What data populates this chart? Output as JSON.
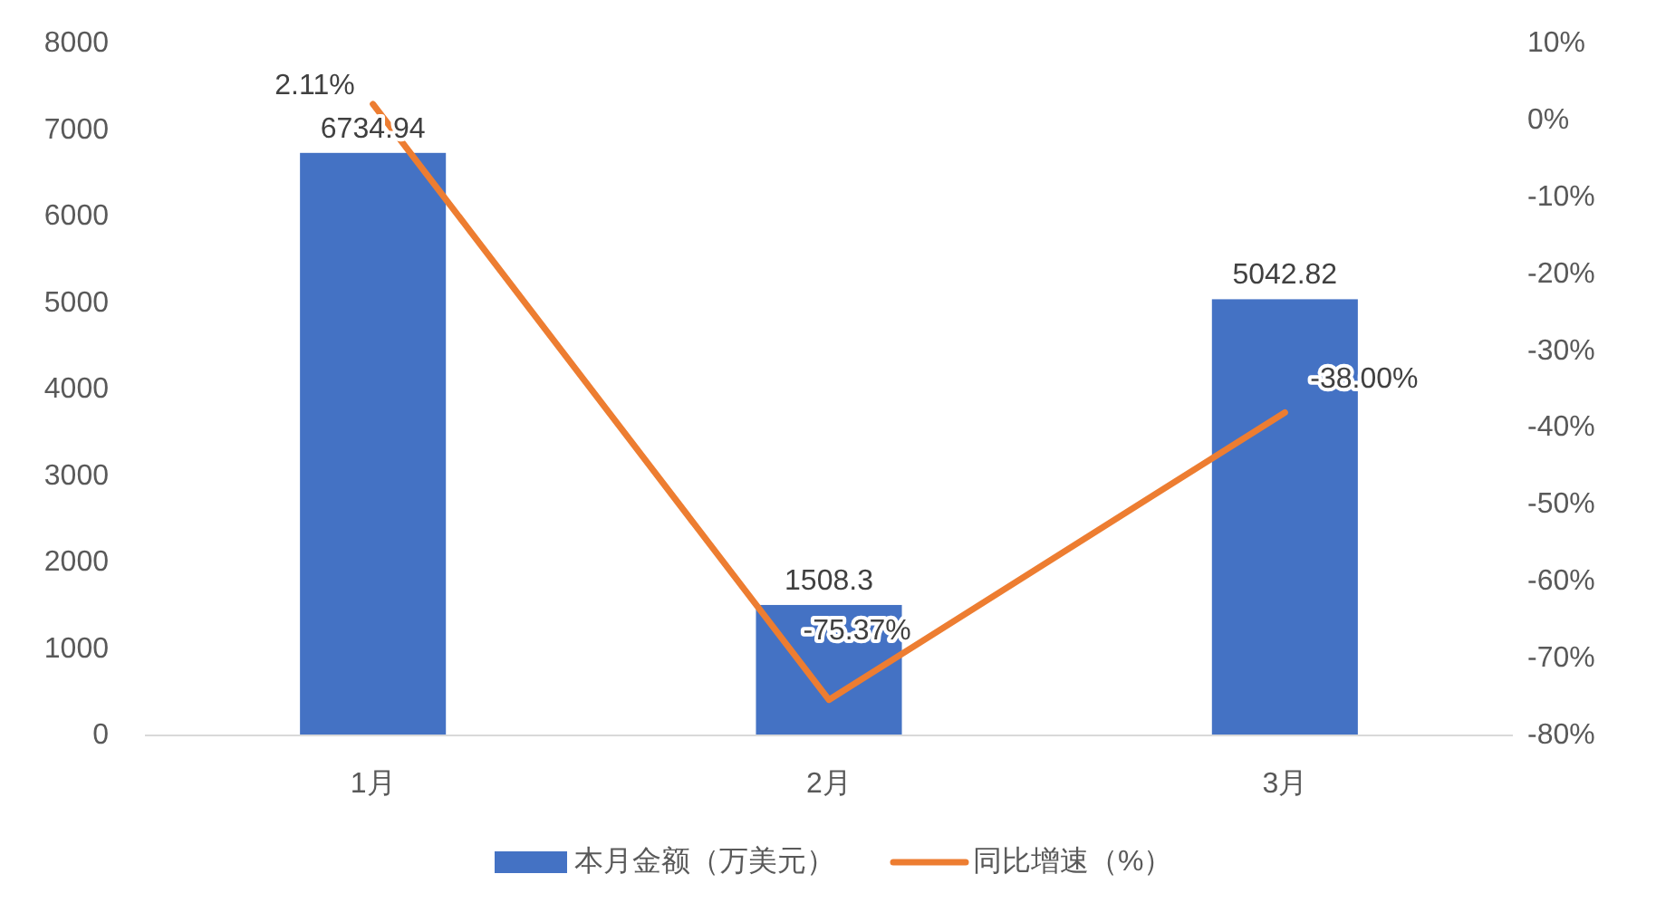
{
  "chart_data": {
    "type": "bar",
    "categories": [
      "1月",
      "2月",
      "3月"
    ],
    "series": [
      {
        "name": "本月金额（万美元）",
        "type": "bar",
        "color": "#4472c4",
        "values": [
          6734.94,
          1508.3,
          5042.82
        ]
      },
      {
        "name": "同比增速（%）",
        "type": "line",
        "axis": "y2",
        "color": "#ed7d31",
        "values": [
          2.11,
          -75.37,
          -38.0
        ],
        "value_labels": [
          "2.11%",
          "-75.37%",
          "-38.00%"
        ]
      }
    ],
    "ylim": [
      0,
      8000
    ],
    "yticks": [
      0,
      1000,
      2000,
      3000,
      4000,
      5000,
      6000,
      7000,
      8000
    ],
    "y2lim": [
      -80,
      10
    ],
    "y2ticks": [
      {
        "value": -80,
        "label": "-80%"
      },
      {
        "value": -70,
        "label": "-70%"
      },
      {
        "value": -60,
        "label": "-60%"
      },
      {
        "value": -50,
        "label": "-50%"
      },
      {
        "value": -40,
        "label": "-40%"
      },
      {
        "value": -30,
        "label": "-30%"
      },
      {
        "value": -20,
        "label": "-20%"
      },
      {
        "value": -10,
        "label": "-10%"
      },
      {
        "value": 0,
        "label": "0%"
      },
      {
        "value": 10,
        "label": "10%"
      }
    ],
    "data_labels": true,
    "legend": "bottom",
    "grid": false
  }
}
